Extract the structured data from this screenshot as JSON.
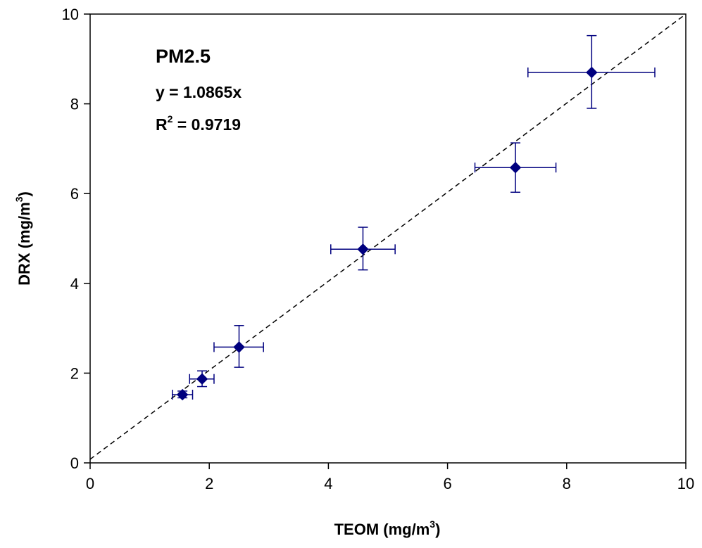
{
  "chart_data": {
    "type": "scatter",
    "xlabel": "TEOM (mg/m",
    "xlabel_sup": "3",
    "xlabel_end": ")",
    "ylabel": "DRX (mg/m",
    "ylabel_sup": "3",
    "ylabel_end": ")",
    "xlim": [
      0,
      10
    ],
    "ylim": [
      0,
      10
    ],
    "xticks": [
      "0",
      "2",
      "4",
      "6",
      "8",
      "10"
    ],
    "yticks": [
      "0",
      "2",
      "4",
      "6",
      "8",
      "10"
    ],
    "grid": false,
    "legend": "none",
    "marker": "diamond",
    "marker_color": "#00007f",
    "errorbar_color": "#00007f",
    "annotation": {
      "title": "PM2.5",
      "equation": "y = 1.0865x",
      "r2_prefix": "R",
      "r2_sup": "2",
      "r2_value": " = 0.9719"
    },
    "reference_line": {
      "style": "dashed",
      "color": "#000000",
      "from": [
        0,
        0.08
      ],
      "to": [
        10,
        10
      ]
    },
    "points": [
      {
        "x": 1.55,
        "y": 1.52,
        "xerr": [
          1.38,
          1.72
        ],
        "yerr": [
          1.45,
          1.6
        ]
      },
      {
        "x": 1.88,
        "y": 1.87,
        "xerr": [
          1.67,
          2.08
        ],
        "yerr": [
          1.7,
          2.05
        ]
      },
      {
        "x": 2.5,
        "y": 2.58,
        "xerr": [
          2.08,
          2.91
        ],
        "yerr": [
          2.13,
          3.06
        ]
      },
      {
        "x": 4.58,
        "y": 4.76,
        "xerr": [
          4.04,
          5.12
        ],
        "yerr": [
          4.3,
          5.25
        ]
      },
      {
        "x": 7.14,
        "y": 6.58,
        "xerr": [
          6.46,
          7.82
        ],
        "yerr": [
          6.03,
          7.13
        ]
      },
      {
        "x": 8.42,
        "y": 8.7,
        "xerr": [
          7.35,
          9.48
        ],
        "yerr": [
          7.9,
          9.52
        ]
      }
    ]
  }
}
